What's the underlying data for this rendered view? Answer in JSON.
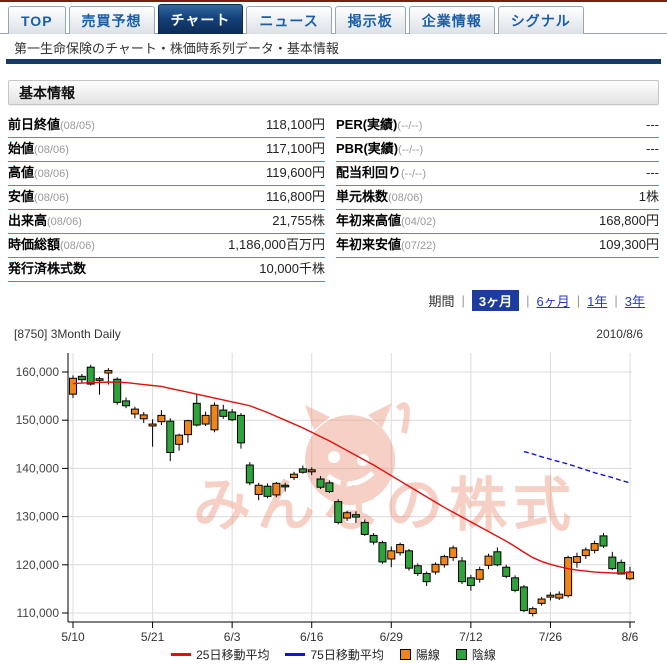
{
  "tabs": [
    {
      "label": "TOP",
      "active": false
    },
    {
      "label": "売買予想",
      "active": false
    },
    {
      "label": "チャート",
      "active": true
    },
    {
      "label": "ニュース",
      "active": false
    },
    {
      "label": "掲示板",
      "active": false
    },
    {
      "label": "企業情報",
      "active": false
    },
    {
      "label": "シグナル",
      "active": false
    }
  ],
  "breadcrumb": "第一生命保険のチャート・株価時系列データ・基本情報",
  "section_header": "基本情報",
  "info_table": {
    "left": [
      {
        "label": "前日終値",
        "date": "(08/05)",
        "value": "118,100円"
      },
      {
        "label": "始値",
        "date": "(08/06)",
        "value": "117,100円"
      },
      {
        "label": "高値",
        "date": "(08/06)",
        "value": "119,600円"
      },
      {
        "label": "安値",
        "date": "(08/06)",
        "value": "116,800円"
      },
      {
        "label": "出来高",
        "date": "(08/06)",
        "value": "21,755株"
      },
      {
        "label": "時価総額",
        "date": "(08/06)",
        "value": "1,186,000百万円"
      },
      {
        "label": "発行済株式数",
        "date": "",
        "value": "10,000千株"
      }
    ],
    "right": [
      {
        "label": "PER(実績)",
        "date": "(--/--)",
        "value": "---"
      },
      {
        "label": "PBR(実績)",
        "date": "(--/--)",
        "value": "---"
      },
      {
        "label": "配当利回り",
        "date": "(--/--)",
        "value": "---"
      },
      {
        "label": "単元株数",
        "date": "(08/06)",
        "value": "1株"
      },
      {
        "label": "年初来高値",
        "date": "(04/02)",
        "value": "168,800円"
      },
      {
        "label": "年初来安値",
        "date": "(07/22)",
        "value": "109,300円"
      }
    ]
  },
  "period": {
    "label": "期間",
    "options": [
      {
        "label": "3ヶ月",
        "selected": true
      },
      {
        "label": "6ヶ月",
        "selected": false
      },
      {
        "label": "1年",
        "selected": false
      },
      {
        "label": "3年",
        "selected": false
      }
    ]
  },
  "chart_header": {
    "left": "[8750] 3Month Daily",
    "right": "2010/8/6"
  },
  "chart_data": {
    "type": "candlestick",
    "title": "[8750] 3Month Daily",
    "watermark": "みんなの株式",
    "ylim": [
      108000,
      163500
    ],
    "yticks": [
      160000,
      150000,
      140000,
      130000,
      120000,
      110000
    ],
    "ytick_labels": [
      "160,000",
      "150,000",
      "140,000",
      "130,000",
      "120,000",
      "110,000"
    ],
    "xtick_labels": [
      "5/10",
      "5/21",
      "6/3",
      "6/16",
      "6/29",
      "7/12",
      "7/26",
      "8/6"
    ],
    "xtick_indices": [
      0,
      9,
      18,
      27,
      36,
      45,
      54,
      63
    ],
    "bull_color": "#f08619",
    "bear_color": "#2fa33b",
    "ma25_color": "#e01010",
    "ma75_color": "#1414cc",
    "grid_color": "#dcdcdc",
    "watermark_color": "#ec8f77",
    "candles": [
      [
        "5/10",
        155400,
        159300,
        154600,
        158700
      ],
      [
        "5/11",
        159100,
        159600,
        157700,
        158400
      ],
      [
        "5/12",
        161000,
        161500,
        157200,
        157500
      ],
      [
        "5/13",
        158300,
        159000,
        155300,
        158600
      ],
      [
        "5/14",
        159800,
        160800,
        157400,
        160300
      ],
      [
        "5/17",
        158500,
        158900,
        153200,
        153700
      ],
      [
        "5/18",
        154000,
        154700,
        152500,
        153000
      ],
      [
        "5/19",
        151300,
        152800,
        150400,
        152300
      ],
      [
        "5/20",
        150300,
        151700,
        149400,
        151100
      ],
      [
        "5/21",
        148800,
        150200,
        144500,
        149200
      ],
      [
        "5/24",
        149700,
        152100,
        149000,
        151000
      ],
      [
        "5/25",
        149800,
        150400,
        141500,
        143300
      ],
      [
        "5/26",
        145000,
        147200,
        143700,
        146900
      ],
      [
        "5/27",
        147000,
        150100,
        145300,
        149900
      ],
      [
        "5/28",
        153500,
        155500,
        148700,
        149000
      ],
      [
        "5/31",
        149200,
        151800,
        148800,
        151000
      ],
      [
        "6/1",
        148000,
        153700,
        147500,
        153100
      ],
      [
        "6/2",
        152100,
        153200,
        150300,
        150800
      ],
      [
        "6/3",
        151700,
        152300,
        149800,
        150100
      ],
      [
        "6/4",
        151000,
        151500,
        144100,
        145300
      ],
      [
        "6/7",
        140700,
        141300,
        136500,
        137000
      ],
      [
        "6/8",
        134600,
        137000,
        133400,
        136500
      ],
      [
        "6/9",
        136300,
        136900,
        133800,
        134200
      ],
      [
        "6/10",
        134500,
        137200,
        134000,
        136900
      ],
      [
        "6/11",
        136500,
        137000,
        135200,
        136300
      ],
      [
        "6/14",
        138100,
        139300,
        137600,
        138800
      ],
      [
        "6/15",
        139900,
        140600,
        138900,
        139200
      ],
      [
        "6/16",
        139300,
        140200,
        138600,
        139700
      ],
      [
        "6/17",
        137800,
        138400,
        135700,
        136100
      ],
      [
        "6/18",
        137000,
        137500,
        134900,
        135200
      ],
      [
        "6/21",
        133100,
        133600,
        128400,
        128800
      ],
      [
        "6/22",
        129700,
        131200,
        129100,
        130800
      ],
      [
        "6/23",
        130400,
        131100,
        128700,
        129900
      ],
      [
        "6/24",
        128800,
        129400,
        126000,
        126300
      ],
      [
        "6/25",
        126100,
        126600,
        124200,
        124700
      ],
      [
        "6/28",
        124600,
        125000,
        120200,
        120600
      ],
      [
        "6/29",
        121200,
        123800,
        119500,
        122900
      ],
      [
        "6/30",
        122500,
        124600,
        121900,
        124200
      ],
      [
        "7/1",
        122900,
        123300,
        118800,
        119300
      ],
      [
        "7/2",
        119800,
        120300,
        117700,
        118200
      ],
      [
        "7/5",
        118200,
        118600,
        115600,
        116500
      ],
      [
        "7/6",
        118500,
        120500,
        118000,
        120100
      ],
      [
        "7/7",
        120000,
        122100,
        119400,
        121700
      ],
      [
        "7/8",
        121500,
        124000,
        120800,
        123500
      ],
      [
        "7/9",
        120800,
        121600,
        116000,
        116500
      ],
      [
        "7/12",
        117300,
        117900,
        114600,
        115700
      ],
      [
        "7/13",
        117000,
        119600,
        116300,
        119000
      ],
      [
        "7/14",
        119900,
        122300,
        119100,
        121800
      ],
      [
        "7/15",
        122700,
        123600,
        119700,
        120000
      ],
      [
        "7/16",
        119500,
        120000,
        117200,
        117600
      ],
      [
        "7/20",
        117300,
        117800,
        114300,
        114700
      ],
      [
        "7/21",
        115400,
        115800,
        110200,
        110500
      ],
      [
        "7/22",
        109900,
        111300,
        109300,
        110900
      ],
      [
        "7/23",
        112000,
        113300,
        111500,
        112900
      ],
      [
        "7/26",
        113300,
        114300,
        112600,
        113700
      ],
      [
        "7/27",
        113100,
        114500,
        112700,
        113900
      ],
      [
        "7/28",
        113600,
        121900,
        113200,
        121500
      ],
      [
        "7/29",
        120500,
        122500,
        119400,
        121700
      ],
      [
        "7/30",
        121900,
        123600,
        121200,
        123100
      ],
      [
        "8/2",
        123000,
        125000,
        122400,
        124400
      ],
      [
        "8/3",
        126000,
        126600,
        123500,
        123900
      ],
      [
        "8/4",
        121600,
        122700,
        118900,
        119200
      ],
      [
        "8/5",
        120500,
        121100,
        118000,
        118100
      ],
      [
        "8/6",
        117100,
        119600,
        116800,
        118500
      ]
    ],
    "ma25": [
      157600,
      157700,
      157800,
      157850,
      157900,
      157900,
      157800,
      157600,
      157400,
      157200,
      157000,
      156600,
      156200,
      155800,
      155400,
      155000,
      154600,
      154200,
      153800,
      153400,
      153000,
      152300,
      151600,
      150800,
      150000,
      149200,
      148400,
      147500,
      146600,
      145700,
      144700,
      143700,
      142700,
      141700,
      140700,
      139600,
      138500,
      137400,
      136300,
      135200,
      134100,
      133000,
      131900,
      130900,
      129900,
      128900,
      127900,
      126900,
      125900,
      124900,
      123800,
      122600,
      121500,
      120700,
      120100,
      119600,
      119200,
      118900,
      118700,
      118500,
      118400,
      118300,
      118300,
      118400
    ],
    "ma75_start_index": 51,
    "ma75": [
      143500,
      143000,
      142400,
      141900,
      141400,
      140900,
      140300,
      139700,
      139100,
      138600,
      138100,
      137500,
      137000
    ],
    "legend": [
      {
        "kind": "line",
        "color": "#e01010",
        "label": "25日移動平均"
      },
      {
        "kind": "line",
        "color": "#1414cc",
        "label": "75日移動平均"
      },
      {
        "kind": "square",
        "color": "#f08619",
        "label": "陽線"
      },
      {
        "kind": "square",
        "color": "#2fa33b",
        "label": "陰線"
      }
    ]
  }
}
